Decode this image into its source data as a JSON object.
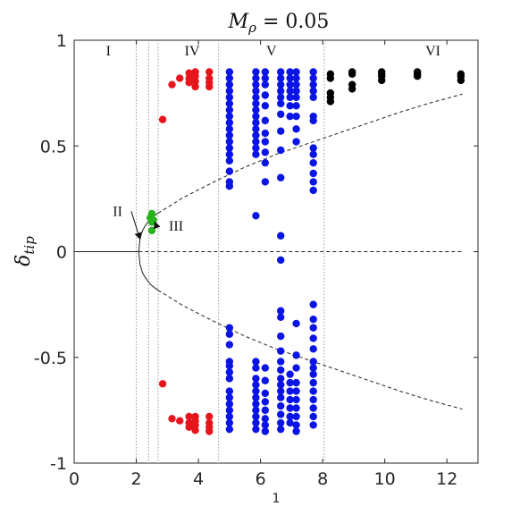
{
  "chart_data": {
    "type": "scatter",
    "title": "M_ρ = 0.05",
    "title_main": "M",
    "title_sub": "ρ",
    "title_rest": " = 0.05",
    "xlabel": "1",
    "ylabel_main": "δ",
    "ylabel_sub": "tip",
    "xlim": [
      0,
      13
    ],
    "ylim": [
      -1,
      1
    ],
    "x_ticks": [
      0,
      2,
      4,
      6,
      8,
      10,
      12
    ],
    "x_tick_labels": [
      "0",
      "2",
      "4",
      "6",
      "8",
      "10",
      "12"
    ],
    "y_ticks": [
      1,
      0.5,
      0,
      -0.5,
      -1
    ],
    "y_tick_labels": [
      "1",
      "0.5",
      "0",
      "-0.5",
      "-1"
    ],
    "grid": false,
    "colors": {
      "red": "#e8141b",
      "green": "#27b21e",
      "blue": "#0b14e6",
      "black": "#000000",
      "axis": "#262626",
      "divider": "#9a9a9a",
      "curve": "#222222"
    },
    "dividers": [
      2.0,
      2.4,
      2.7,
      4.65,
      8.05
    ],
    "regions": [
      {
        "label": "I",
        "x": 1.1
      },
      {
        "label": "IV",
        "x": 3.8
      },
      {
        "label": "V",
        "x": 6.35
      },
      {
        "label": "VI",
        "x": 11.55
      }
    ],
    "annotations": [
      {
        "label": "II",
        "text_x": 1.55,
        "text_y": 0.17,
        "target_x": 2.12,
        "target_y": 0.06
      },
      {
        "label": "III",
        "text_x": 3.05,
        "text_y": 0.1,
        "target_x": 2.6,
        "target_y": 0.14
      }
    ],
    "lines": [
      {
        "name": "stable-zero",
        "style": "solid",
        "x": [
          0,
          2.08
        ],
        "y": [
          0,
          0
        ]
      },
      {
        "name": "unstable-zero",
        "style": "dashed",
        "x": [
          2.08,
          12.5
        ],
        "y": [
          0,
          0
        ]
      },
      {
        "name": "upper-stable",
        "style": "solid",
        "x": [
          2.08,
          2.12,
          2.2,
          2.3,
          2.4,
          2.5,
          2.6,
          2.7
        ],
        "y": [
          0,
          0.06,
          0.1,
          0.125,
          0.145,
          0.16,
          0.172,
          0.182
        ]
      },
      {
        "name": "upper-unstable",
        "style": "dashed",
        "x": [
          2.7,
          3.5,
          4.5,
          5.5,
          6.5,
          7.5,
          8.5,
          9.5,
          10.5,
          11.5,
          12.5
        ],
        "y": [
          0.182,
          0.255,
          0.33,
          0.4,
          0.46,
          0.51,
          0.56,
          0.61,
          0.66,
          0.705,
          0.745
        ]
      },
      {
        "name": "lower-stable",
        "style": "solid",
        "x": [
          2.08,
          2.12,
          2.2,
          2.3,
          2.4,
          2.5,
          2.6,
          2.7
        ],
        "y": [
          0,
          -0.06,
          -0.1,
          -0.125,
          -0.145,
          -0.16,
          -0.172,
          -0.182
        ]
      },
      {
        "name": "lower-unstable",
        "style": "dashed",
        "x": [
          2.7,
          3.5,
          4.5,
          5.5,
          6.5,
          7.5,
          8.5,
          9.5,
          10.5,
          11.5,
          12.5
        ],
        "y": [
          -0.182,
          -0.255,
          -0.33,
          -0.4,
          -0.46,
          -0.51,
          -0.56,
          -0.61,
          -0.66,
          -0.705,
          -0.745
        ]
      }
    ],
    "series": [
      {
        "color": "red",
        "points": [
          [
            2.85,
            0.625
          ],
          [
            3.15,
            0.79
          ],
          [
            3.4,
            0.82
          ],
          [
            3.7,
            0.845
          ],
          [
            3.7,
            0.82
          ],
          [
            3.7,
            0.8
          ],
          [
            3.9,
            0.85
          ],
          [
            3.9,
            0.83
          ],
          [
            3.9,
            0.805
          ],
          [
            3.9,
            0.78
          ],
          [
            4.35,
            0.85
          ],
          [
            4.35,
            0.82
          ],
          [
            4.35,
            0.8
          ],
          [
            4.35,
            0.78
          ],
          [
            2.85,
            -0.625
          ],
          [
            3.15,
            -0.79
          ],
          [
            3.4,
            -0.8
          ],
          [
            3.7,
            -0.78
          ],
          [
            3.7,
            -0.81
          ],
          [
            3.7,
            -0.83
          ],
          [
            3.9,
            -0.78
          ],
          [
            3.9,
            -0.8
          ],
          [
            3.9,
            -0.82
          ],
          [
            3.9,
            -0.845
          ],
          [
            4.35,
            -0.78
          ],
          [
            4.35,
            -0.81
          ],
          [
            4.35,
            -0.83
          ],
          [
            4.35,
            -0.85
          ]
        ]
      },
      {
        "color": "green",
        "points": [
          [
            2.45,
            0.16
          ],
          [
            2.5,
            0.18
          ],
          [
            2.5,
            0.14
          ],
          [
            2.55,
            0.15
          ],
          [
            2.5,
            0.1
          ]
        ]
      },
      {
        "color": "blue",
        "points": [
          [
            5.0,
            0.85
          ],
          [
            5.0,
            0.82
          ],
          [
            5.0,
            0.79
          ],
          [
            5.0,
            0.76
          ],
          [
            5.0,
            0.73
          ],
          [
            5.0,
            0.7
          ],
          [
            5.0,
            0.67
          ],
          [
            5.0,
            0.64
          ],
          [
            5.0,
            0.61
          ],
          [
            5.0,
            0.58
          ],
          [
            5.0,
            0.55
          ],
          [
            5.0,
            0.52
          ],
          [
            5.0,
            0.49
          ],
          [
            5.0,
            0.46
          ],
          [
            5.0,
            0.43
          ],
          [
            5.0,
            0.38
          ],
          [
            5.0,
            0.33
          ],
          [
            5.0,
            0.31
          ],
          [
            5.85,
            0.85
          ],
          [
            5.85,
            0.82
          ],
          [
            5.85,
            0.79
          ],
          [
            5.85,
            0.76
          ],
          [
            5.85,
            0.73
          ],
          [
            5.85,
            0.7
          ],
          [
            5.85,
            0.67
          ],
          [
            5.85,
            0.64
          ],
          [
            5.85,
            0.61
          ],
          [
            5.85,
            0.58
          ],
          [
            5.85,
            0.55
          ],
          [
            5.85,
            0.52
          ],
          [
            5.85,
            0.49
          ],
          [
            5.85,
            0.46
          ],
          [
            5.85,
            0.17
          ],
          [
            6.15,
            0.85
          ],
          [
            6.15,
            0.82
          ],
          [
            6.15,
            0.79
          ],
          [
            6.15,
            0.74
          ],
          [
            6.15,
            0.69
          ],
          [
            6.15,
            0.62
          ],
          [
            6.15,
            0.56
          ],
          [
            6.15,
            0.52
          ],
          [
            6.15,
            0.47
          ],
          [
            6.15,
            0.42
          ],
          [
            6.15,
            0.33
          ],
          [
            6.65,
            0.85
          ],
          [
            6.65,
            0.82
          ],
          [
            6.65,
            0.79
          ],
          [
            6.65,
            0.76
          ],
          [
            6.65,
            0.73
          ],
          [
            6.65,
            0.7
          ],
          [
            6.65,
            0.65
          ],
          [
            6.65,
            0.57
          ],
          [
            6.65,
            0.48
          ],
          [
            6.65,
            0.35
          ],
          [
            6.65,
            0.075
          ],
          [
            6.65,
            -0.04
          ],
          [
            6.95,
            0.85
          ],
          [
            6.95,
            0.82
          ],
          [
            6.95,
            0.79
          ],
          [
            6.95,
            0.76
          ],
          [
            6.95,
            0.73
          ],
          [
            6.95,
            0.69
          ],
          [
            6.95,
            0.64
          ],
          [
            7.15,
            0.85
          ],
          [
            7.15,
            0.82
          ],
          [
            7.15,
            0.79
          ],
          [
            7.15,
            0.76
          ],
          [
            7.15,
            0.73
          ],
          [
            7.15,
            0.69
          ],
          [
            7.15,
            0.64
          ],
          [
            7.15,
            0.58
          ],
          [
            7.15,
            0.52
          ],
          [
            7.7,
            0.85
          ],
          [
            7.7,
            0.82
          ],
          [
            7.7,
            0.79
          ],
          [
            7.7,
            0.76
          ],
          [
            7.7,
            0.73
          ],
          [
            7.7,
            0.64
          ],
          [
            7.7,
            0.62
          ],
          [
            7.7,
            0.49
          ],
          [
            7.7,
            0.46
          ],
          [
            7.7,
            0.42
          ],
          [
            7.7,
            0.37
          ],
          [
            7.7,
            0.33
          ],
          [
            7.7,
            0.29
          ],
          [
            5.0,
            -0.36
          ],
          [
            5.0,
            -0.39
          ],
          [
            5.0,
            -0.44
          ],
          [
            5.0,
            -0.52
          ],
          [
            5.0,
            -0.54
          ],
          [
            5.0,
            -0.57
          ],
          [
            5.0,
            -0.6
          ],
          [
            5.0,
            -0.66
          ],
          [
            5.0,
            -0.69
          ],
          [
            5.0,
            -0.72
          ],
          [
            5.0,
            -0.75
          ],
          [
            5.0,
            -0.78
          ],
          [
            5.0,
            -0.81
          ],
          [
            5.0,
            -0.84
          ],
          [
            5.85,
            -0.52
          ],
          [
            5.85,
            -0.55
          ],
          [
            5.85,
            -0.6
          ],
          [
            5.85,
            -0.63
          ],
          [
            5.85,
            -0.66
          ],
          [
            5.85,
            -0.69
          ],
          [
            5.85,
            -0.72
          ],
          [
            5.85,
            -0.75
          ],
          [
            5.85,
            -0.78
          ],
          [
            5.85,
            -0.81
          ],
          [
            5.85,
            -0.84
          ],
          [
            6.15,
            -0.55
          ],
          [
            6.15,
            -0.61
          ],
          [
            6.15,
            -0.67
          ],
          [
            6.15,
            -0.71
          ],
          [
            6.15,
            -0.75
          ],
          [
            6.15,
            -0.79
          ],
          [
            6.15,
            -0.82
          ],
          [
            6.15,
            -0.85
          ],
          [
            6.65,
            -0.28
          ],
          [
            6.65,
            -0.31
          ],
          [
            6.65,
            -0.4
          ],
          [
            6.65,
            -0.47
          ],
          [
            6.65,
            -0.52
          ],
          [
            6.65,
            -0.56
          ],
          [
            6.65,
            -0.6
          ],
          [
            6.65,
            -0.63
          ],
          [
            6.65,
            -0.66
          ],
          [
            6.65,
            -0.69
          ],
          [
            6.65,
            -0.73
          ],
          [
            6.65,
            -0.77
          ],
          [
            6.65,
            -0.81
          ],
          [
            6.65,
            -0.84
          ],
          [
            6.95,
            -0.58
          ],
          [
            6.95,
            -0.62
          ],
          [
            6.95,
            -0.66
          ],
          [
            6.95,
            -0.7
          ],
          [
            6.95,
            -0.74
          ],
          [
            6.95,
            -0.78
          ],
          [
            6.95,
            -0.81
          ],
          [
            7.15,
            -0.34
          ],
          [
            7.15,
            -0.49
          ],
          [
            7.15,
            -0.55
          ],
          [
            7.15,
            -0.62
          ],
          [
            7.15,
            -0.66
          ],
          [
            7.15,
            -0.7
          ],
          [
            7.15,
            -0.74
          ],
          [
            7.15,
            -0.78
          ],
          [
            7.15,
            -0.82
          ],
          [
            7.15,
            -0.85
          ],
          [
            7.7,
            -0.25
          ],
          [
            7.7,
            -0.32
          ],
          [
            7.7,
            -0.36
          ],
          [
            7.7,
            -0.41
          ],
          [
            7.7,
            -0.46
          ],
          [
            7.7,
            -0.52
          ],
          [
            7.7,
            -0.55
          ],
          [
            7.7,
            -0.58
          ],
          [
            7.7,
            -0.62
          ],
          [
            7.7,
            -0.66
          ],
          [
            7.7,
            -0.7
          ],
          [
            7.7,
            -0.74
          ],
          [
            7.7,
            -0.78
          ],
          [
            7.7,
            -0.82
          ]
        ]
      },
      {
        "color": "black",
        "points": [
          [
            8.25,
            0.84
          ],
          [
            8.25,
            0.82
          ],
          [
            8.25,
            0.75
          ],
          [
            8.25,
            0.73
          ],
          [
            8.25,
            0.71
          ],
          [
            8.95,
            0.85
          ],
          [
            8.95,
            0.84
          ],
          [
            8.95,
            0.79
          ],
          [
            8.95,
            0.77
          ],
          [
            9.9,
            0.85
          ],
          [
            9.9,
            0.84
          ],
          [
            9.9,
            0.83
          ],
          [
            9.9,
            0.81
          ],
          [
            11.05,
            0.85
          ],
          [
            11.05,
            0.84
          ],
          [
            11.05,
            0.83
          ],
          [
            12.45,
            0.84
          ],
          [
            12.45,
            0.83
          ],
          [
            12.45,
            0.81
          ]
        ]
      }
    ]
  }
}
